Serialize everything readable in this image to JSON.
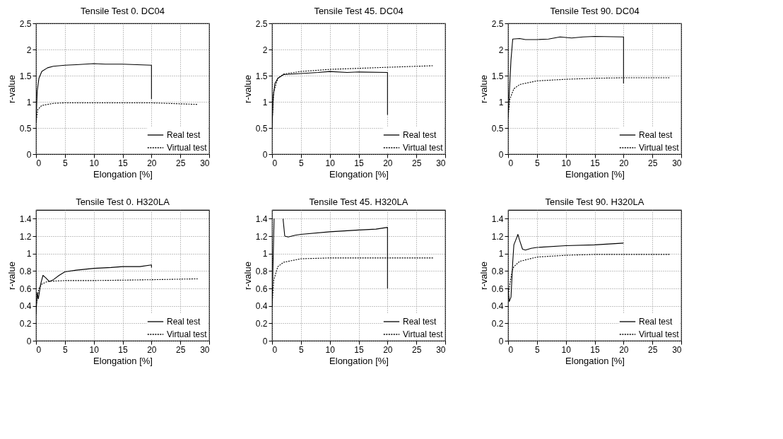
{
  "chart_data": [
    {
      "type": "line",
      "title": "Tensile Test 0. DC04",
      "xlabel": "Elongation [%]",
      "ylabel": "r-value",
      "xlim": [
        0,
        30
      ],
      "xticks": [
        0,
        5,
        10,
        15,
        20,
        25,
        30
      ],
      "ylim": [
        0,
        2.5
      ],
      "yticks": [
        0,
        0.5,
        1,
        1.5,
        2,
        2.5
      ],
      "grid": true,
      "legend": "bottom right",
      "series": [
        {
          "name": "Real test",
          "color": "#000000",
          "line_style": "solid",
          "x": [
            0,
            0.2,
            0.5,
            1,
            2,
            3,
            5,
            7,
            10,
            12,
            15,
            20,
            20
          ],
          "values": [
            0.6,
            1.2,
            1.45,
            1.58,
            1.65,
            1.68,
            1.7,
            1.71,
            1.73,
            1.72,
            1.72,
            1.7,
            1.05
          ]
        },
        {
          "name": "Virtual test",
          "color": "#000000",
          "line_style": "dashed",
          "x": [
            0,
            0.3,
            1,
            3,
            5,
            10,
            20,
            28
          ],
          "values": [
            0.6,
            0.85,
            0.93,
            0.97,
            0.98,
            0.98,
            0.98,
            0.95
          ]
        }
      ]
    },
    {
      "type": "line",
      "title": "Tensile Test 45. DC04",
      "xlabel": "Elongation [%]",
      "ylabel": "r-value",
      "xlim": [
        0,
        30
      ],
      "xticks": [
        0,
        5,
        10,
        15,
        20,
        25,
        30
      ],
      "ylim": [
        0,
        2.5
      ],
      "yticks": [
        0,
        0.5,
        1,
        1.5,
        2,
        2.5
      ],
      "grid": true,
      "legend": "bottom right",
      "series": [
        {
          "name": "Real test",
          "color": "#000000",
          "line_style": "solid",
          "x": [
            0,
            0.2,
            0.5,
            1,
            2,
            5,
            8,
            10,
            13,
            15,
            20,
            20
          ],
          "values": [
            0.5,
            1.1,
            1.35,
            1.45,
            1.52,
            1.54,
            1.56,
            1.58,
            1.56,
            1.57,
            1.56,
            0.75
          ]
        },
        {
          "name": "Virtual test",
          "color": "#000000",
          "line_style": "dashed",
          "x": [
            0,
            0.3,
            1,
            2,
            5,
            10,
            15,
            20,
            28
          ],
          "values": [
            0.6,
            1.2,
            1.45,
            1.53,
            1.58,
            1.62,
            1.64,
            1.66,
            1.69
          ]
        }
      ]
    },
    {
      "type": "line",
      "title": "Tensile Test 90. DC04",
      "xlabel": "Elongation [%]",
      "ylabel": "r-value",
      "xlim": [
        0,
        30
      ],
      "xticks": [
        0,
        5,
        10,
        15,
        20,
        25,
        30
      ],
      "ylim": [
        0,
        2.5
      ],
      "yticks": [
        0,
        0.5,
        1,
        1.5,
        2,
        2.5
      ],
      "grid": true,
      "legend": "bottom right",
      "series": [
        {
          "name": "Real test",
          "color": "#000000",
          "line_style": "solid",
          "x": [
            0,
            0.5,
            0.8,
            2,
            3,
            5,
            7,
            9,
            11,
            13,
            15,
            20,
            20
          ],
          "values": [
            0.7,
            1.8,
            2.2,
            2.21,
            2.19,
            2.19,
            2.2,
            2.24,
            2.22,
            2.24,
            2.25,
            2.24,
            1.35
          ]
        },
        {
          "name": "Virtual test",
          "color": "#000000",
          "line_style": "dashed",
          "x": [
            0,
            0.3,
            1,
            2,
            5,
            10,
            15,
            20,
            28
          ],
          "values": [
            0.7,
            1.05,
            1.25,
            1.33,
            1.4,
            1.43,
            1.45,
            1.46,
            1.46
          ]
        }
      ]
    },
    {
      "type": "line",
      "title": "Tensile Test 0. H320LA",
      "xlabel": "Elongation [%]",
      "ylabel": "r-value",
      "xlim": [
        0,
        30
      ],
      "xticks": [
        0,
        5,
        10,
        15,
        20,
        25,
        30
      ],
      "ylim": [
        0,
        1.5
      ],
      "yticks": [
        0,
        0.2,
        0.4,
        0.6,
        0.8,
        1,
        1.2,
        1.4
      ],
      "grid": true,
      "legend": "bottom right",
      "series": [
        {
          "name": "Real test",
          "color": "#000000",
          "line_style": "solid",
          "x": [
            0,
            0.2,
            0.4,
            0.8,
            1.2,
            1.7,
            2.3,
            3,
            4,
            5,
            7,
            10,
            13,
            15,
            18,
            20,
            20
          ],
          "values": [
            0.3,
            0.55,
            0.48,
            0.65,
            0.75,
            0.72,
            0.68,
            0.7,
            0.75,
            0.79,
            0.81,
            0.83,
            0.84,
            0.85,
            0.85,
            0.87,
            0.84
          ]
        },
        {
          "name": "Virtual test",
          "color": "#000000",
          "line_style": "dashed",
          "x": [
            0,
            0.5,
            1,
            2,
            5,
            10,
            20,
            28
          ],
          "values": [
            0.4,
            0.6,
            0.65,
            0.68,
            0.69,
            0.69,
            0.7,
            0.71
          ]
        }
      ]
    },
    {
      "type": "line",
      "title": "Tensile Test 45. H320LA",
      "xlabel": "Elongation [%]",
      "ylabel": "r-value",
      "xlim": [
        0,
        30
      ],
      "xticks": [
        0,
        5,
        10,
        15,
        20,
        25,
        30
      ],
      "ylim": [
        0,
        1.5
      ],
      "yticks": [
        0,
        0.2,
        0.4,
        0.6,
        0.8,
        1,
        1.2,
        1.4
      ],
      "grid": true,
      "legend": "bottom right",
      "series": [
        {
          "name": "Real test",
          "color": "#000000",
          "line_style": "solid",
          "x": [
            0,
            0.35,
            1,
            1.9,
            2.2,
            2.8,
            4,
            5,
            10,
            15,
            18,
            20,
            20
          ],
          "values": [
            0.4,
            1.4,
            null,
            1.4,
            1.2,
            1.19,
            1.21,
            1.22,
            1.25,
            1.27,
            1.28,
            1.3,
            0.6
          ]
        },
        {
          "name": "Virtual test",
          "color": "#000000",
          "line_style": "dashed",
          "x": [
            0,
            0.3,
            1,
            2,
            5,
            10,
            20,
            28
          ],
          "values": [
            0.4,
            0.7,
            0.85,
            0.9,
            0.94,
            0.95,
            0.95,
            0.95
          ]
        }
      ]
    },
    {
      "type": "line",
      "title": "Tensile Test 90. H320LA",
      "xlabel": "Elongation [%]",
      "ylabel": "r-value",
      "xlim": [
        0,
        30
      ],
      "xticks": [
        0,
        5,
        10,
        15,
        20,
        25,
        30
      ],
      "ylim": [
        0,
        1.5
      ],
      "yticks": [
        0,
        0.2,
        0.4,
        0.6,
        0.8,
        1,
        1.2,
        1.4
      ],
      "grid": true,
      "legend": "bottom right",
      "series": [
        {
          "name": "Real test",
          "color": "#000000",
          "line_style": "solid",
          "x": [
            0,
            0.2,
            0.5,
            0.8,
            1,
            1.3,
            1.7,
            2,
            2.5,
            3,
            4,
            5,
            10,
            15,
            20
          ],
          "values": [
            0.6,
            0.45,
            0.5,
            0.9,
            1.1,
            1.15,
            1.22,
            1.15,
            1.05,
            1.04,
            1.06,
            1.07,
            1.09,
            1.1,
            1.12
          ]
        },
        {
          "name": "Virtual test",
          "color": "#000000",
          "line_style": "dashed",
          "x": [
            0,
            0.3,
            0.7,
            1,
            2,
            5,
            10,
            15,
            20,
            28
          ],
          "values": [
            0.5,
            0.65,
            0.8,
            0.85,
            0.91,
            0.96,
            0.98,
            0.99,
            0.99,
            0.99
          ]
        }
      ]
    }
  ]
}
